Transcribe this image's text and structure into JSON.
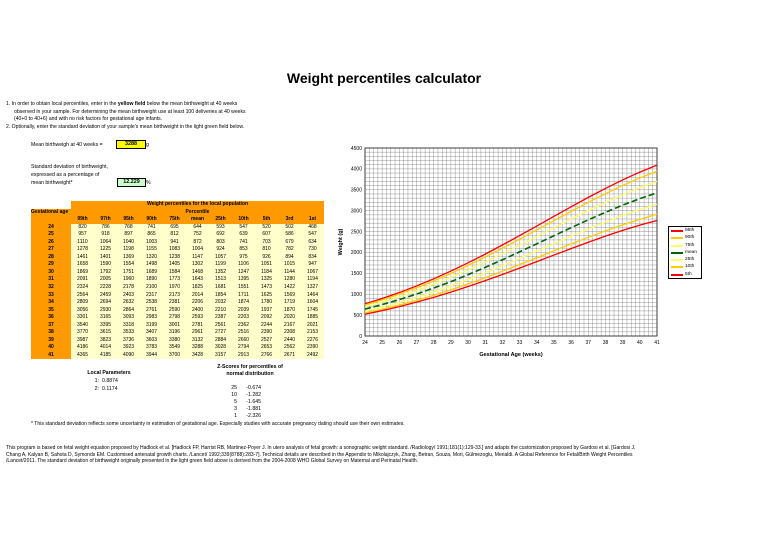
{
  "title": "Weight percentiles calculator",
  "instructions": {
    "line1_pre": "1. In order to obtain local percentiles, enter in the ",
    "line1_bold": "yellow field",
    "line1_post": " below the mean birthweight at 40 weeks",
    "line2": "observed in your sample. For determining the mean birthweight use at least 100 deliveries at 40 weeks",
    "line3": "(40+0 to 40+6) and with no risk factors for gestational age infants.",
    "line4": "2. Optionally, enter the standard deviation of your sample's mean birthweight in the light green field below."
  },
  "mean_field": {
    "label": "Mean birthweigh at 40 weeks =",
    "value": "3288",
    "unit": "g"
  },
  "sd_field": {
    "label_line1": "Standard deviation of birthweight,",
    "label_line2": "expressed as a percentage of",
    "label_line3": "mean birthweight*",
    "value": "12.229",
    "unit": "%"
  },
  "table": {
    "title": "Weight percentiles for the local population",
    "ga_header": "Gestational age",
    "percentile_header": "Percentile",
    "columns": [
      "99th",
      "97th",
      "95th",
      "90th",
      "75th",
      "mean",
      "25th",
      "10th",
      "5th",
      "3rd",
      "1st"
    ],
    "rows": [
      {
        "ga": "24",
        "values": [
          "820",
          "786",
          "768",
          "741",
          "695",
          "644",
          "593",
          "547",
          "520",
          "502",
          "468"
        ]
      },
      {
        "ga": "25",
        "values": [
          "957",
          "918",
          "897",
          "865",
          "812",
          "752",
          "692",
          "639",
          "607",
          "586",
          "547"
        ]
      },
      {
        "ga": "26",
        "values": [
          "1110",
          "1064",
          "1040",
          "1003",
          "941",
          "872",
          "803",
          "741",
          "703",
          "679",
          "634"
        ]
      },
      {
        "ga": "27",
        "values": [
          "1278",
          "1225",
          "1198",
          "1155",
          "1083",
          "1004",
          "924",
          "853",
          "810",
          "782",
          "730"
        ]
      },
      {
        "ga": "28",
        "values": [
          "1461",
          "1401",
          "1369",
          "1320",
          "1238",
          "1147",
          "1057",
          "975",
          "926",
          "894",
          "834"
        ]
      },
      {
        "ga": "29",
        "values": [
          "1658",
          "1590",
          "1554",
          "1498",
          "1405",
          "1302",
          "1199",
          "1106",
          "1051",
          "1015",
          "947"
        ]
      },
      {
        "ga": "30",
        "values": [
          "1869",
          "1792",
          "1751",
          "1689",
          "1584",
          "1468",
          "1352",
          "1247",
          "1184",
          "1144",
          "1067"
        ]
      },
      {
        "ga": "31",
        "values": [
          "2091",
          "2005",
          "1960",
          "1890",
          "1773",
          "1643",
          "1513",
          "1395",
          "1325",
          "1280",
          "1194"
        ]
      },
      {
        "ga": "32",
        "values": [
          "2324",
          "2228",
          "2178",
          "2100",
          "1970",
          "1825",
          "1681",
          "1551",
          "1473",
          "1422",
          "1327"
        ]
      },
      {
        "ga": "33",
        "values": [
          "2564",
          "2459",
          "2403",
          "2317",
          "2173",
          "2014",
          "1854",
          "1711",
          "1625",
          "1569",
          "1464"
        ]
      },
      {
        "ga": "34",
        "values": [
          "2809",
          "2694",
          "2632",
          "2538",
          "2381",
          "2206",
          "2032",
          "1874",
          "1780",
          "1719",
          "1604"
        ]
      },
      {
        "ga": "35",
        "values": [
          "3056",
          "2930",
          "2864",
          "2761",
          "2590",
          "2400",
          "2210",
          "2039",
          "1937",
          "1870",
          "1745"
        ]
      },
      {
        "ga": "36",
        "values": [
          "3301",
          "3165",
          "3093",
          "2983",
          "2798",
          "2593",
          "2387",
          "2203",
          "2092",
          "2020",
          "1885"
        ]
      },
      {
        "ga": "37",
        "values": [
          "3540",
          "3395",
          "3318",
          "3199",
          "3001",
          "2781",
          "2561",
          "2362",
          "2244",
          "2167",
          "2021"
        ]
      },
      {
        "ga": "38",
        "values": [
          "3770",
          "3615",
          "3533",
          "3407",
          "3196",
          "2961",
          "2727",
          "2516",
          "2390",
          "2308",
          "2153"
        ]
      },
      {
        "ga": "39",
        "values": [
          "3987",
          "3823",
          "3736",
          "3603",
          "3380",
          "3132",
          "2884",
          "2660",
          "2527",
          "2440",
          "2276"
        ]
      },
      {
        "ga": "40",
        "values": [
          "4186",
          "4014",
          "3923",
          "3783",
          "3549",
          "3288",
          "3028",
          "2794",
          "2653",
          "2562",
          "2390"
        ]
      },
      {
        "ga": "41",
        "values": [
          "4365",
          "4185",
          "4090",
          "3944",
          "3700",
          "3428",
          "3157",
          "2913",
          "2766",
          "2671",
          "2492"
        ]
      }
    ]
  },
  "local_params": {
    "title": "Local Parameters",
    "rows": [
      {
        "k": "1:",
        "v": "0.8874"
      },
      {
        "k": "2:",
        "v": "0.1174"
      }
    ]
  },
  "zscores": {
    "title_line1": "Z-Scores for percentiles of",
    "title_line2": "normal distribution",
    "rows": [
      {
        "p": "25",
        "z": "-0.674"
      },
      {
        "p": "10",
        "z": "-1.282"
      },
      {
        "p": "5",
        "z": "-1.645"
      },
      {
        "p": "3",
        "z": "-1.881"
      },
      {
        "p": "1",
        "z": "-2.326"
      }
    ]
  },
  "footnote": "* This standard deviation reflects some uncertainty in estimation of gestational age. Especially studies with accurate pregnancy dating should use their own estimates.",
  "bottom_text": {
    "line1": "This program is based on fetal weight equation proposed by Hadlock et al. [Hadlock FP, Harrist RB, Martinez-Poyer J. In utero analysis of fetal growth: a sonographic weight standard. /Radiology/ 1991;181(1):129-33.] and adapts the customization proposed by Gardosi et al. [Gardosi J,",
    "line2": "Chang A, Kalyan B, Sahota D, Symonds EM. Customised antenatal growth charts. /Lancet/ 1992;339(8788):283-7]. Technical details are described in the Appendix to Mikolajczyk, Zhang, Betran, Souza, Mori, Gülmezoglu, Merialdi. A Global Reference for Fetal/Birth Weight Percentiles",
    "line3": "/Lancet/2011. The standard deviation of birthweight originally presented in the light green field above is derived from the 2004-2008 WHO Global Survey on Maternal and Perinatal Health."
  },
  "chart_data": {
    "type": "line",
    "xlabel": "Gestational Age (weeks)",
    "ylabel": "Weight (g)",
    "x": [
      24,
      25,
      26,
      27,
      28,
      29,
      30,
      31,
      32,
      33,
      34,
      35,
      36,
      37,
      38,
      39,
      40,
      41
    ],
    "xlim": [
      24,
      41
    ],
    "ylim": [
      0,
      4500
    ],
    "yticks": [
      0,
      500,
      1000,
      1500,
      2000,
      2500,
      3000,
      3500,
      4000,
      4500
    ],
    "grid": true,
    "legend_position": "right",
    "series": [
      {
        "name": "95th",
        "color": "#ff0000",
        "values": [
          768,
          897,
          1040,
          1198,
          1369,
          1554,
          1751,
          1960,
          2178,
          2403,
          2632,
          2864,
          3093,
          3318,
          3533,
          3736,
          3923,
          4090
        ]
      },
      {
        "name": "90th",
        "color": "#ffcc00",
        "values": [
          741,
          865,
          1003,
          1155,
          1320,
          1498,
          1689,
          1890,
          2100,
          2317,
          2538,
          2761,
          2983,
          3199,
          3407,
          3603,
          3783,
          3944
        ]
      },
      {
        "name": "75th",
        "color": "#ffff66",
        "values": [
          695,
          812,
          941,
          1083,
          1238,
          1405,
          1584,
          1773,
          1970,
          2173,
          2381,
          2590,
          2798,
          3001,
          3196,
          3380,
          3549,
          3700
        ]
      },
      {
        "name": "mean",
        "color": "#006600",
        "values": [
          644,
          752,
          872,
          1004,
          1147,
          1302,
          1468,
          1643,
          1825,
          2014,
          2206,
          2400,
          2593,
          2781,
          2961,
          3132,
          3288,
          3428
        ]
      },
      {
        "name": "25th",
        "color": "#ffff66",
        "values": [
          593,
          692,
          803,
          924,
          1057,
          1199,
          1352,
          1513,
          1681,
          1854,
          2032,
          2210,
          2387,
          2561,
          2727,
          2884,
          3028,
          3157
        ]
      },
      {
        "name": "10th",
        "color": "#ffcc00",
        "values": [
          547,
          639,
          741,
          853,
          975,
          1106,
          1247,
          1395,
          1551,
          1711,
          1874,
          2039,
          2203,
          2362,
          2516,
          2660,
          2794,
          2913
        ]
      },
      {
        "name": "5th",
        "color": "#ff0000",
        "values": [
          520,
          607,
          703,
          810,
          926,
          1051,
          1184,
          1325,
          1473,
          1625,
          1780,
          1937,
          2092,
          2244,
          2390,
          2527,
          2653,
          2766
        ]
      }
    ]
  }
}
